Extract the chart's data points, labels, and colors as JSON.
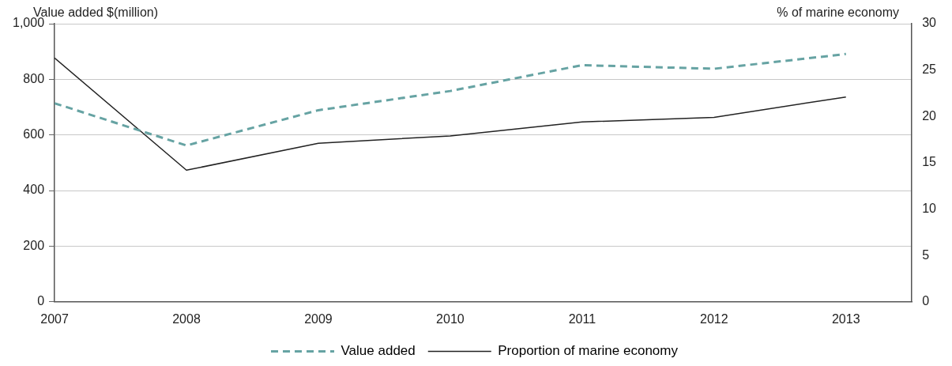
{
  "chart_data": {
    "type": "line",
    "ylabel": "Value added $(million)",
    "y2label": "% of marine economy",
    "x": [
      2007,
      2008,
      2009,
      2010,
      2011,
      2012,
      2013
    ],
    "xlim": [
      2007,
      2013.5
    ],
    "xticks": [
      2007,
      2008,
      2009,
      2010,
      2011,
      2012,
      2013
    ],
    "ylim": [
      0,
      1000
    ],
    "yticks": [
      0,
      200,
      400,
      600,
      800,
      {
        "value": 1000,
        "label": "1,000"
      }
    ],
    "y2lim": [
      0,
      30
    ],
    "y2ticks": [
      0,
      5,
      10,
      15,
      20,
      25,
      30
    ],
    "grid": "y",
    "legend": "bottom",
    "marker": "none",
    "series": [
      {
        "name": "Value added",
        "color": "#66a3a3",
        "line_style": "dashed",
        "values": [
          714,
          562,
          689,
          758,
          851,
          838,
          891
        ]
      },
      {
        "name": "Proportion of marine economy",
        "color": "#222222",
        "line_style": "solid",
        "axis": "y2",
        "values": [
          26.3,
          14.2,
          17.1,
          17.9,
          19.4,
          19.9,
          22.1
        ]
      }
    ]
  }
}
